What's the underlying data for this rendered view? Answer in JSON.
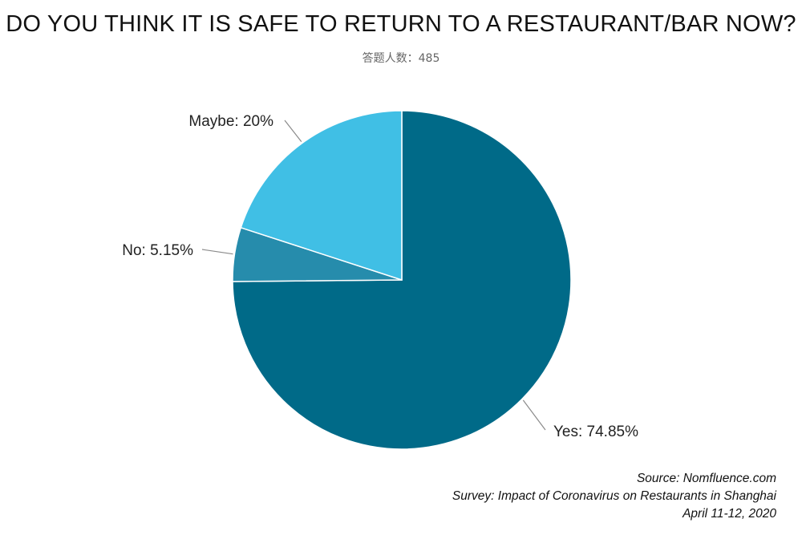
{
  "title": "DO YOU THINK IT IS SAFE TO RETURN TO A RESTAURANT/BAR NOW?",
  "subtitle": "答题人数：485",
  "chart_data": {
    "type": "pie",
    "slices": [
      {
        "label": "Yes",
        "value": 74.85,
        "display": "Yes: 74.85%",
        "color": "#006a88"
      },
      {
        "label": "No",
        "value": 5.15,
        "display": "No: 5.15%",
        "color": "#268cac"
      },
      {
        "label": "Maybe",
        "value": 20,
        "display": "Maybe: 20%",
        "color": "#40bfe5"
      }
    ]
  },
  "source": {
    "line1": "Source: Nomfluence.com",
    "line2": "Survey: Impact of Coronavirus on Restaurants in Shanghai",
    "line3": "April 11-12, 2020"
  }
}
